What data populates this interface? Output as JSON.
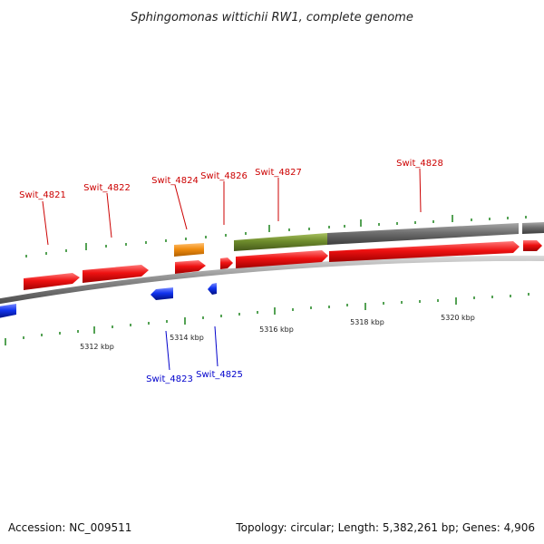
{
  "title": "Sphingomonas wittichii RW1, complete genome",
  "footer": {
    "accession": "Accession: NC_009511",
    "topology": "Topology: circular; Length: 5,382,261 bp; Genes: 4,906"
  },
  "colors": {
    "forward_gene": "#ee1111",
    "reverse_gene": "#1133ee",
    "orange_feature": "#f08c10",
    "green_feature": "#6e8c2c",
    "gray_feature": "#6e6e6e",
    "backbone": "#8a8a8a",
    "tick": "#2a8a2a",
    "forward_label": "#cc0000",
    "reverse_label": "#0000cc"
  },
  "forward_genes": [
    "Swit_4821",
    "Swit_4822",
    "Swit_4824",
    "Swit_4826",
    "Swit_4827",
    "Swit_4828"
  ],
  "reverse_genes": [
    "Swit_4823",
    "Swit_4825"
  ],
  "kbp_labels": [
    "5312 kbp",
    "5314 kbp",
    "5316 kbp",
    "5318 kbp",
    "5320 kbp"
  ]
}
